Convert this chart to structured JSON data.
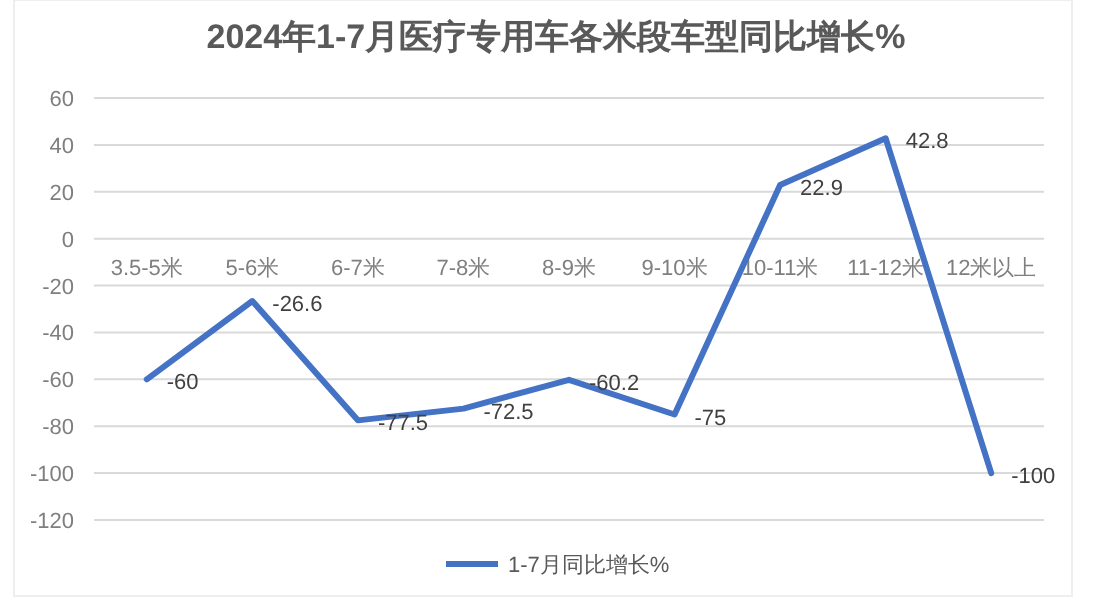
{
  "chart_data": {
    "type": "line",
    "title": "2024年1-7月医疗专用车各米段车型同比增长%",
    "categories": [
      "3.5-5米",
      "5-6米",
      "6-7米",
      "7-8米",
      "8-9米",
      "9-10米",
      "10-11米",
      "11-12米",
      "12米以上"
    ],
    "series": [
      {
        "name": "1-7月同比增长%",
        "color": "#4472c4",
        "values": [
          -60,
          -26.6,
          -77.5,
          -72.5,
          -60.2,
          -75,
          22.9,
          42.8,
          -100
        ]
      }
    ],
    "ylim": [
      -120,
      60
    ],
    "yticks": [
      -120,
      -100,
      -80,
      -60,
      -40,
      -20,
      0,
      20,
      40,
      60
    ],
    "grid": "y",
    "legend": "bottom",
    "data_labels": true,
    "marker": "none",
    "line_style": "solid"
  }
}
